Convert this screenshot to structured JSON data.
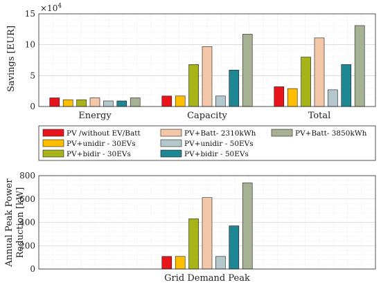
{
  "colors": {
    "PV /without EV/Batt": "#e8141b",
    "PV+unidir - 30EVs": "#ffbf00",
    "PV+bidir - 30EVs": "#a6b319",
    "PV+Batt- 2310kWh": "#f5c7a9",
    "PV+unidir - 50EVs": "#b4c7cc",
    "PV+bidir - 50EVs": "#1f8693",
    "PV+Batt- 3850kWh": "#a6b293"
  },
  "legend": {
    "entries": [
      "PV /without EV/Batt",
      "PV+unidir - 30EVs",
      "PV+bidir - 30EVs",
      "PV+Batt- 2310kWh",
      "PV+unidir - 50EVs",
      "PV+bidir - 50EVs",
      "PV+Batt- 3850kWh"
    ]
  },
  "chart_data": [
    {
      "type": "bar",
      "ylabel": "Savings [EUR]",
      "exponent_label": "×10",
      "exponent_power": "4",
      "categories": [
        "Energy",
        "Capacity",
        "Total"
      ],
      "ylim": [
        0,
        150000
      ],
      "yticks": [
        0,
        50000,
        100000,
        150000
      ],
      "ytick_labels": [
        "0",
        "5",
        "10",
        "15"
      ],
      "grid": true,
      "series": [
        {
          "name": "PV /without EV/Batt",
          "values": [
            14000,
            17000,
            32000
          ]
        },
        {
          "name": "PV+unidir - 30EVs",
          "values": [
            11000,
            17000,
            29000
          ]
        },
        {
          "name": "PV+bidir - 30EVs",
          "values": [
            11000,
            68000,
            80000
          ]
        },
        {
          "name": "PV+Batt- 2310kWh",
          "values": [
            14000,
            97000,
            111000
          ]
        },
        {
          "name": "PV+unidir - 50EVs",
          "values": [
            9000,
            17000,
            27000
          ]
        },
        {
          "name": "PV+bidir - 50EVs",
          "values": [
            9000,
            59000,
            68000
          ]
        },
        {
          "name": "PV+Batt- 3850kWh",
          "values": [
            14000,
            117000,
            131000
          ]
        }
      ]
    },
    {
      "type": "bar",
      "ylabel_lines": [
        "Annual Peak Power",
        "Reduction [kW]"
      ],
      "categories": [
        "Grid Demand Peak"
      ],
      "ylim": [
        0,
        800
      ],
      "yticks": [
        0,
        200,
        400,
        600,
        800
      ],
      "ytick_labels": [
        "0",
        "200",
        "400",
        "600",
        "800"
      ],
      "grid": true,
      "series": [
        {
          "name": "PV /without EV/Batt",
          "values": [
            108
          ]
        },
        {
          "name": "PV+unidir - 30EVs",
          "values": [
            108
          ]
        },
        {
          "name": "PV+bidir - 30EVs",
          "values": [
            430
          ]
        },
        {
          "name": "PV+Batt- 2310kWh",
          "values": [
            612
          ]
        },
        {
          "name": "PV+unidir - 50EVs",
          "values": [
            108
          ]
        },
        {
          "name": "PV+bidir - 50EVs",
          "values": [
            370
          ]
        },
        {
          "name": "PV+Batt- 3850kWh",
          "values": [
            738
          ]
        }
      ]
    }
  ]
}
